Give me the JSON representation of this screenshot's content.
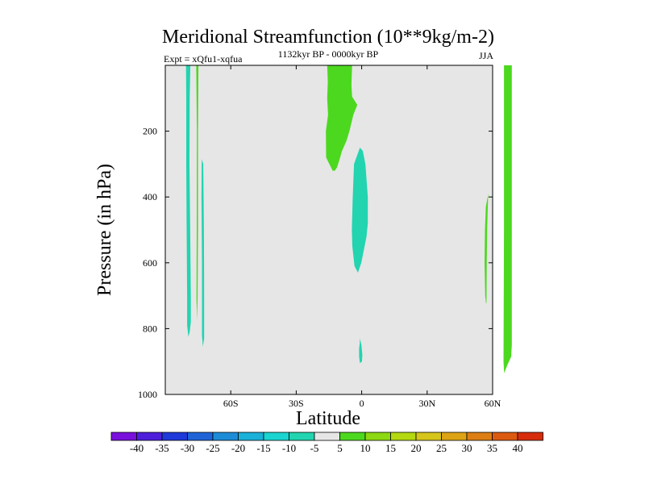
{
  "chart_data": {
    "type": "contour",
    "title": "Meridional Streamfunction (10**9kg/m-2)",
    "subtitle_left": "Expt = xQfu1-xqfua",
    "subtitle_center": "1132kyr BP - 0000kyr BP",
    "subtitle_right": "JJA",
    "xlabel": "Latitude",
    "ylabel": "Pressure (in hPa)",
    "xlim": [
      -90,
      60
    ],
    "ylim": [
      1000,
      0
    ],
    "x_ticks": [
      {
        "value": -60,
        "label": "60S"
      },
      {
        "value": -30,
        "label": "30S"
      },
      {
        "value": 0,
        "label": "0"
      },
      {
        "value": 30,
        "label": "30N"
      },
      {
        "value": 60,
        "label": "60N"
      }
    ],
    "y_ticks": [
      {
        "value": 200,
        "label": "200"
      },
      {
        "value": 400,
        "label": "400"
      },
      {
        "value": 600,
        "label": "600"
      },
      {
        "value": 800,
        "label": "800"
      },
      {
        "value": 1000,
        "label": "1000"
      }
    ],
    "background_color": "#e6e6e6",
    "regions": [
      {
        "name": "sh-polar-negative-strip",
        "color": "#22d4b0",
        "points": [
          [
            -80.5,
            0
          ],
          [
            -78.5,
            0
          ],
          [
            -78.8,
            100
          ],
          [
            -78.9,
            300
          ],
          [
            -78.6,
            500
          ],
          [
            -78.3,
            700
          ],
          [
            -78.3,
            780
          ],
          [
            -78.8,
            810
          ],
          [
            -79.4,
            825
          ],
          [
            -80.0,
            790
          ],
          [
            -80.0,
            700
          ],
          [
            -80.2,
            500
          ],
          [
            -80.4,
            300
          ],
          [
            -80.4,
            100
          ]
        ]
      },
      {
        "name": "sh-thin-positive-strip",
        "color": "#4cd81f",
        "points": [
          [
            -75.8,
            0
          ],
          [
            -74.8,
            0
          ],
          [
            -75.0,
            200
          ],
          [
            -75.0,
            500
          ],
          [
            -75.2,
            700
          ],
          [
            -75.4,
            775
          ],
          [
            -75.7,
            710
          ],
          [
            -75.6,
            500
          ],
          [
            -75.5,
            200
          ]
        ]
      },
      {
        "name": "sh-midlat-negative-strip",
        "color": "#22d4b0",
        "points": [
          [
            -73.3,
            285
          ],
          [
            -72.6,
            300
          ],
          [
            -72.3,
            500
          ],
          [
            -72.2,
            700
          ],
          [
            -72.2,
            830
          ],
          [
            -72.8,
            855
          ],
          [
            -73.2,
            820
          ],
          [
            -73.2,
            600
          ],
          [
            -73.4,
            400
          ]
        ]
      },
      {
        "name": "tropical-positive-upper-cell",
        "color": "#4cd81f",
        "points": [
          [
            -15.8,
            0
          ],
          [
            -4.4,
            0
          ],
          [
            -4.7,
            60
          ],
          [
            -4.4,
            95
          ],
          [
            -2.0,
            120
          ],
          [
            -3.8,
            150
          ],
          [
            -5.6,
            200
          ],
          [
            -7.0,
            230
          ],
          [
            -9.0,
            260
          ],
          [
            -10.3,
            290
          ],
          [
            -11.3,
            310
          ],
          [
            -12.3,
            320
          ],
          [
            -13.3,
            320
          ],
          [
            -14.8,
            300
          ],
          [
            -16.3,
            280
          ],
          [
            -16.4,
            200
          ],
          [
            -15.4,
            150
          ],
          [
            -15.8,
            100
          ],
          [
            -15.5,
            50
          ]
        ]
      },
      {
        "name": "equatorial-negative-cell",
        "color": "#22d4b0",
        "points": [
          [
            -0.8,
            250
          ],
          [
            -3.5,
            300
          ],
          [
            -4.1,
            400
          ],
          [
            -4.5,
            500
          ],
          [
            -4.3,
            550
          ],
          [
            -3.3,
            610
          ],
          [
            -1.7,
            630
          ],
          [
            -0.2,
            600
          ],
          [
            2.2,
            520
          ],
          [
            2.8,
            480
          ],
          [
            2.8,
            400
          ],
          [
            1.7,
            300
          ],
          [
            0.5,
            260
          ]
        ]
      },
      {
        "name": "equatorial-small-negative-blob",
        "color": "#22d4b0",
        "points": [
          [
            -0.8,
            830
          ],
          [
            -0.1,
            850
          ],
          [
            0.3,
            880
          ],
          [
            0.1,
            900
          ],
          [
            -0.8,
            905
          ],
          [
            -1.2,
            885
          ],
          [
            -1.2,
            860
          ],
          [
            -0.9,
            845
          ]
        ]
      },
      {
        "name": "nh-60n-small-positive-blob",
        "color": "#4cd81f",
        "points": [
          [
            58.0,
            390
          ],
          [
            56.9,
            430
          ],
          [
            56.5,
            500
          ],
          [
            56.3,
            600
          ],
          [
            56.6,
            700
          ],
          [
            57.0,
            725
          ],
          [
            57.2,
            720
          ],
          [
            57.3,
            600
          ],
          [
            57.5,
            500
          ],
          [
            57.8,
            430
          ]
        ]
      },
      {
        "name": "nh-highlat-positive-strip",
        "color": "#4cd81f",
        "points": [
          [
            65.2,
            0
          ],
          [
            68.8,
            0
          ],
          [
            68.8,
            100
          ],
          [
            68.8,
            300
          ],
          [
            68.8,
            500
          ],
          [
            68.8,
            700
          ],
          [
            68.8,
            850
          ],
          [
            68.5,
            885
          ],
          [
            66.8,
            910
          ],
          [
            65.3,
            935
          ],
          [
            65.0,
            900
          ],
          [
            65.1,
            700
          ],
          [
            65.2,
            500
          ],
          [
            65.2,
            300
          ],
          [
            65.2,
            100
          ]
        ]
      }
    ],
    "colorbar": {
      "labels": [
        "-40",
        "-35",
        "-30",
        "-25",
        "-20",
        "-15",
        "-10",
        "-5",
        "5",
        "10",
        "15",
        "20",
        "25",
        "30",
        "35",
        "40"
      ],
      "colors": [
        "#7a10dc",
        "#4d1fdb",
        "#1e3ad9",
        "#1f63d6",
        "#1d8cd6",
        "#1ab0d8",
        "#1ad4d0",
        "#22d4b0",
        "#e6e6e6",
        "#4cd81f",
        "#8cd812",
        "#b4d812",
        "#d6c51a",
        "#dca316",
        "#dc7e14",
        "#dc5a10",
        "#d62c0c"
      ]
    }
  }
}
